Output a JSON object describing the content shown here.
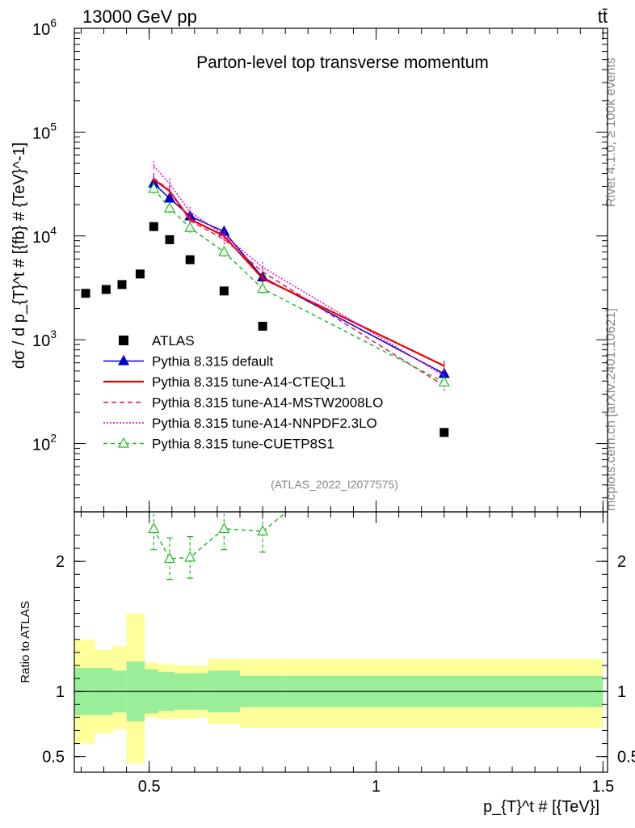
{
  "header": {
    "energy": "13000 GeV pp",
    "process": "tt̄",
    "rivet": "Rivet 4.1.0, ≥ 100k events",
    "mcplots": "mcplots.cern.ch [arXiv:2401.10621]"
  },
  "chart_data": {
    "type": "line",
    "title": "Parton-level top transverse momentum",
    "analysis": "(ATLAS_2022_I2077575)",
    "ylabel": "dσ / d p_{T}^t # [{fb} # {TeV}^-1]",
    "xlabel": "p_{T}^t # [{TeV}]",
    "ratio_ylabel": "Ratio to ATLAS",
    "xlim": [
      0.335,
      1.51
    ],
    "ylim": [
      22,
      1000000
    ],
    "ylog": true,
    "ratio_ylim": [
      0.38,
      2.38
    ],
    "x_ticks": [
      0.5,
      1,
      1.5
    ],
    "x_tick_labels": [
      "0.5",
      "1",
      "1.5"
    ],
    "y_ticks": [
      100,
      1000,
      10000,
      100000,
      1000000
    ],
    "y_tick_labels": [
      {
        "base": "10",
        "exp": "2"
      },
      {
        "base": "10",
        "exp": "3"
      },
      {
        "base": "10",
        "exp": "4"
      },
      {
        "base": "10",
        "exp": "5"
      },
      {
        "base": "10",
        "exp": "6"
      }
    ],
    "ratio_ticks": [
      0.5,
      1,
      2
    ],
    "ratio_tick_labels": [
      "0.5",
      "1",
      "2"
    ],
    "series": [
      {
        "name": "ATLAS",
        "style": "data",
        "color": "#000000",
        "x": [
          0.36,
          0.405,
          0.44,
          0.48,
          0.51,
          0.545,
          0.59,
          0.665,
          0.75,
          1.15
        ],
        "y": [
          2800,
          3050,
          3400,
          4300,
          12300,
          9200,
          5900,
          2950,
          1350,
          128
        ]
      },
      {
        "name": "Pythia 8.315 default",
        "style": "mc",
        "color": "#0000cc",
        "dash": "",
        "marker": "triangle-filled",
        "x": [
          0.51,
          0.545,
          0.59,
          0.665,
          0.75,
          1.15
        ],
        "y": [
          32000,
          23000,
          15500,
          11000,
          4000,
          470
        ]
      },
      {
        "name": "Pythia 8.315 tune-A14-CTEQL1",
        "style": "mc",
        "color": "#ee0000",
        "dash": "",
        "marker": "none",
        "x": [
          0.51,
          0.545,
          0.59,
          0.665,
          0.75,
          1.15
        ],
        "y": [
          35000,
          27000,
          14500,
          10000,
          3900,
          560
        ]
      },
      {
        "name": "Pythia 8.315 tune-A14-MSTW2008LO",
        "style": "mc",
        "color": "#ee1166",
        "dash": "6,4",
        "marker": "none",
        "x": [
          0.51,
          0.545,
          0.59,
          0.665,
          0.75,
          1.15
        ],
        "y": [
          36000,
          27500,
          14000,
          9300,
          4500,
          360
        ]
      },
      {
        "name": "Pythia 8.315 tune-A14-NNPDF2.3LO",
        "style": "mc",
        "color": "#ee00cc",
        "dash": "2,2",
        "marker": "none",
        "x": [
          0.51,
          0.545,
          0.59,
          0.665,
          0.75,
          1.15
        ],
        "y": [
          47000,
          32000,
          17000,
          10200,
          5000,
          450
        ]
      },
      {
        "name": "Pythia 8.315 tune-CUETP8S1",
        "style": "mc",
        "color": "#22bb22",
        "dash": "5,4",
        "marker": "triangle-open",
        "x": [
          0.51,
          0.545,
          0.59,
          0.665,
          0.75,
          1.15
        ],
        "y": [
          28500,
          18500,
          12000,
          7000,
          3100,
          390
        ]
      }
    ],
    "ratio_series": [
      {
        "name": "Pythia 8.315 tune-CUETP8S1",
        "x": [
          0.51,
          0.545,
          0.59,
          0.665,
          0.75,
          0.81
        ],
        "y": [
          2.25,
          2.02,
          2.03,
          2.25,
          2.23,
          2.4
        ]
      }
    ],
    "ratio_bands": {
      "edges": [
        0.335,
        0.38,
        0.42,
        0.45,
        0.49,
        0.52,
        0.555,
        0.6,
        0.63,
        0.7,
        0.8,
        1.5
      ],
      "inner_lo": [
        0.82,
        0.82,
        0.84,
        0.77,
        0.83,
        0.85,
        0.86,
        0.86,
        0.84,
        0.88,
        0.88
      ],
      "inner_hi": [
        1.18,
        1.18,
        1.16,
        1.23,
        1.17,
        1.15,
        1.14,
        1.14,
        1.16,
        1.12,
        1.12
      ],
      "outer_lo": [
        0.6,
        0.68,
        0.71,
        0.45,
        0.8,
        0.79,
        0.79,
        0.8,
        0.75,
        0.72,
        0.72
      ],
      "outer_hi": [
        1.4,
        1.32,
        1.35,
        1.6,
        1.22,
        1.21,
        1.2,
        1.2,
        1.25,
        1.25,
        1.25
      ]
    }
  }
}
